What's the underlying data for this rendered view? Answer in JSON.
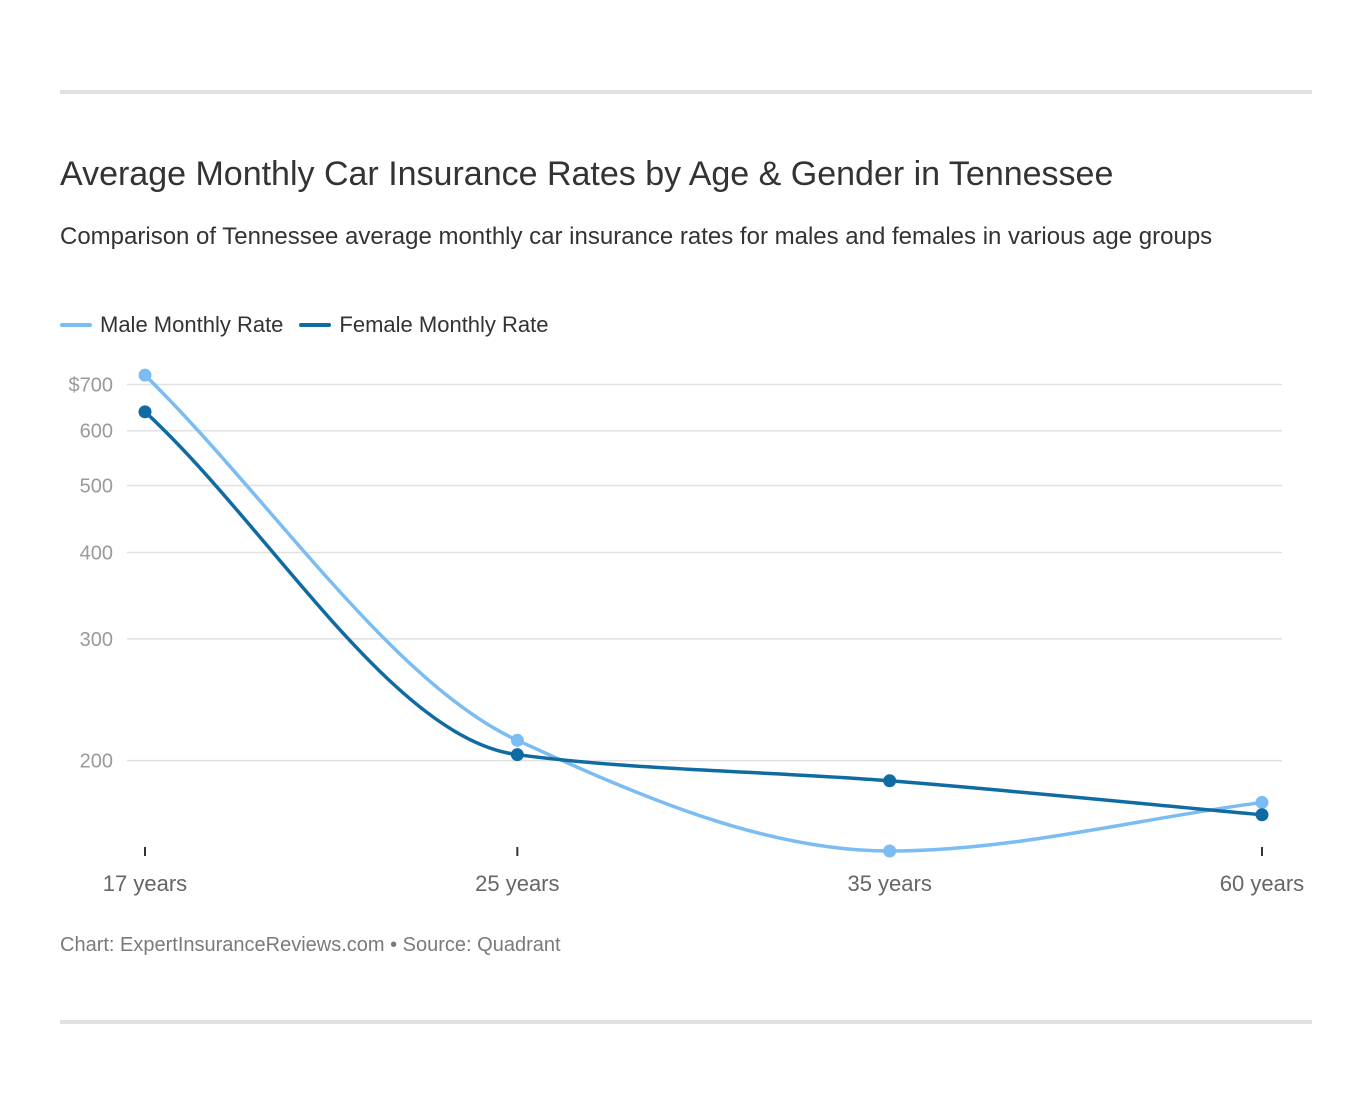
{
  "header": {
    "title": "Average Monthly Car Insurance Rates by Age & Gender in Tennessee",
    "subtitle": "Comparison of Tennessee average monthly car insurance rates for males and females in various age groups"
  },
  "footer": {
    "credit": "Chart: ExpertInsuranceReviews.com • Source: Quadrant"
  },
  "colors": {
    "male": "#7bbcf2",
    "female": "#106ba3",
    "grid": "#e1e1e1",
    "tick_label": "#9a9a9a",
    "axis_label": "#666666"
  },
  "chart_data": {
    "type": "line",
    "scale": "log",
    "categories": [
      "17 years",
      "25 years",
      "35 years",
      "60 years"
    ],
    "ylim": [
      150,
      720
    ],
    "yticks": [
      {
        "value": 700,
        "label": "$700"
      },
      {
        "value": 600,
        "label": "600"
      },
      {
        "value": 500,
        "label": "500"
      },
      {
        "value": 400,
        "label": "400"
      },
      {
        "value": 300,
        "label": "300"
      },
      {
        "value": 200,
        "label": "200"
      }
    ],
    "grid": true,
    "legend": "top-left",
    "series": [
      {
        "name": "Male Monthly Rate",
        "color_key": "male",
        "values": [
          722,
          214,
          148,
          174
        ]
      },
      {
        "name": "Female Monthly Rate",
        "color_key": "female",
        "values": [
          639,
          204,
          187,
          167
        ]
      }
    ]
  }
}
